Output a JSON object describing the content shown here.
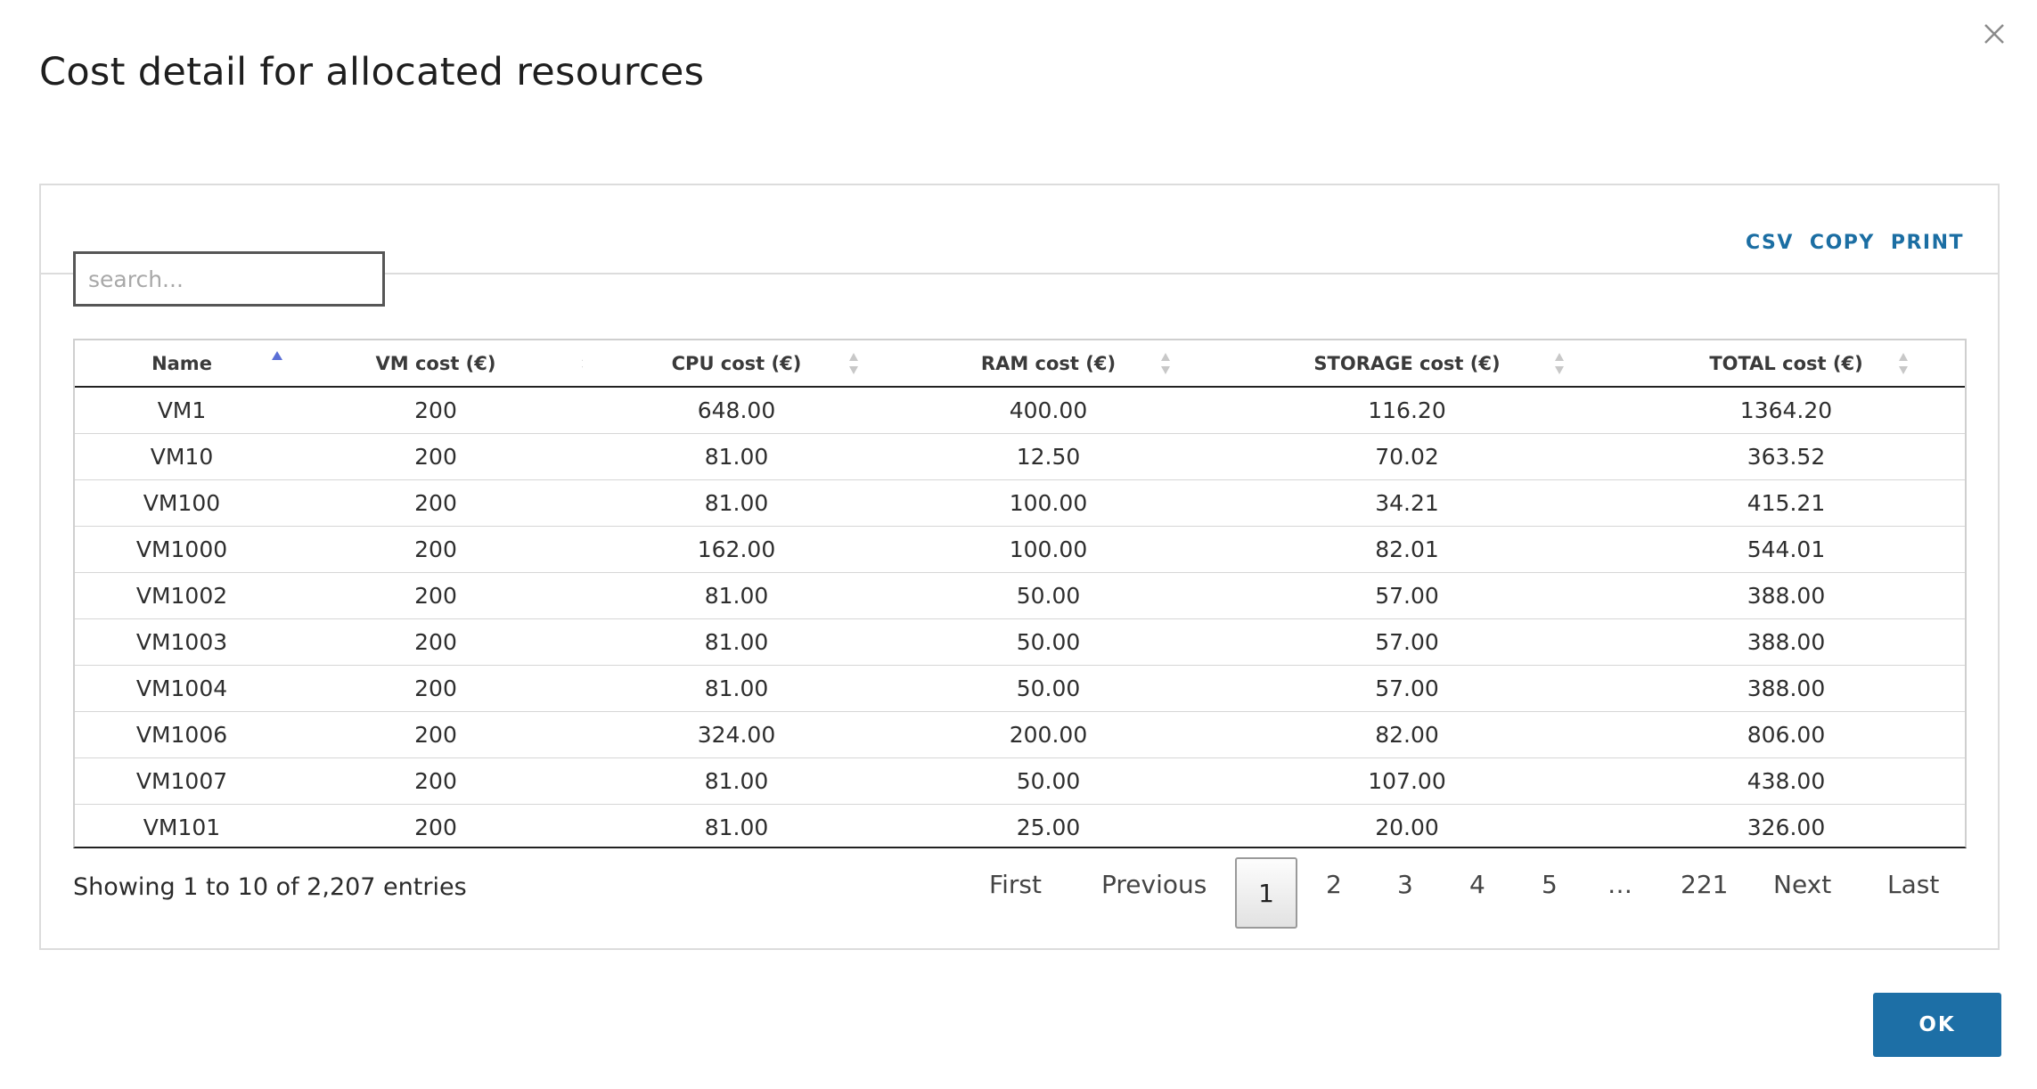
{
  "dialog": {
    "title": "Cost detail for allocated resources",
    "ok_label": "OK"
  },
  "export": {
    "csv": "CSV",
    "copy": "COPY",
    "print": "PRINT"
  },
  "search": {
    "placeholder": "search...",
    "value": ""
  },
  "table": {
    "columns": [
      "Name",
      "VM cost (€)",
      "CPU cost (€)",
      "RAM cost (€)",
      "STORAGE cost (€)",
      "TOTAL cost (€)"
    ],
    "sort": {
      "column": "Name",
      "direction": "ascending"
    },
    "rows": [
      [
        "VM1",
        "200",
        "648.00",
        "400.00",
        "116.20",
        "1364.20"
      ],
      [
        "VM10",
        "200",
        "81.00",
        "12.50",
        "70.02",
        "363.52"
      ],
      [
        "VM100",
        "200",
        "81.00",
        "100.00",
        "34.21",
        "415.21"
      ],
      [
        "VM1000",
        "200",
        "162.00",
        "100.00",
        "82.01",
        "544.01"
      ],
      [
        "VM1002",
        "200",
        "81.00",
        "50.00",
        "57.00",
        "388.00"
      ],
      [
        "VM1003",
        "200",
        "81.00",
        "50.00",
        "57.00",
        "388.00"
      ],
      [
        "VM1004",
        "200",
        "81.00",
        "50.00",
        "57.00",
        "388.00"
      ],
      [
        "VM1006",
        "200",
        "324.00",
        "200.00",
        "82.00",
        "806.00"
      ],
      [
        "VM1007",
        "200",
        "81.00",
        "50.00",
        "107.00",
        "438.00"
      ],
      [
        "VM101",
        "200",
        "81.00",
        "25.00",
        "20.00",
        "326.00"
      ]
    ]
  },
  "info": "Showing 1 to 10 of 2,207 entries",
  "pagination": {
    "first": "First",
    "previous": "Previous",
    "pages": [
      "1",
      "2",
      "3",
      "4",
      "5"
    ],
    "current": "1",
    "ellipsis": "…",
    "last_page": "221",
    "next": "Next",
    "last": "Last"
  },
  "colors": {
    "accent": "#1d6fa6",
    "link": "#1b6ea3",
    "sort_active": "#5b6fd6",
    "sort_inactive": "#c8c8c8"
  }
}
